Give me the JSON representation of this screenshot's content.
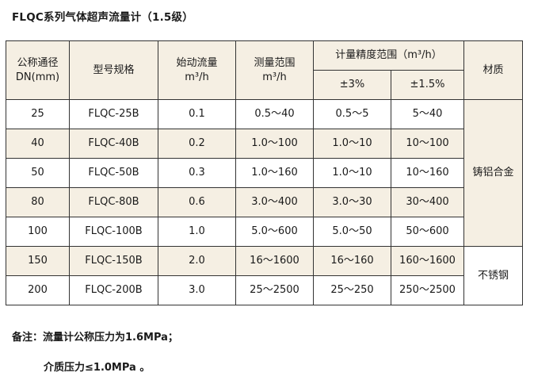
{
  "title": "FLQC系列气体超声流量计（1.5级）",
  "table": {
    "headers": {
      "dn_line1": "公称通径",
      "dn_line2": "DN(mm)",
      "model": "型号规格",
      "start_flow_line1": "始动流量",
      "start_flow_line2": "m³/h",
      "range_line1": "测量范围",
      "range_line2": "m³/h",
      "accuracy_group": "计量精度范围（m³/h）",
      "acc_3": "±3%",
      "acc_1_5": "±1.5%",
      "material": "材质"
    },
    "rows": [
      {
        "dn": "25",
        "model": "FLQC-25B",
        "start": "0.1",
        "range": "0.5～40",
        "acc3": "0.5～5",
        "acc15": "5～40"
      },
      {
        "dn": "40",
        "model": "FLQC-40B",
        "start": "0.2",
        "range": "1.0～100",
        "acc3": "1.0～10",
        "acc15": "10～100"
      },
      {
        "dn": "50",
        "model": "FLQC-50B",
        "start": "0.3",
        "range": "1.0～160",
        "acc3": "1.0～10",
        "acc15": "10～160"
      },
      {
        "dn": "80",
        "model": "FLQC-80B",
        "start": "0.6",
        "range": "3.0～400",
        "acc3": "3.0～30",
        "acc15": "30～400"
      },
      {
        "dn": "100",
        "model": "FLQC-100B",
        "start": "1.0",
        "range": "5.0～600",
        "acc3": "5.0～50",
        "acc15": "50～600"
      },
      {
        "dn": "150",
        "model": "FLQC-150B",
        "start": "2.0",
        "range": "16～1600",
        "acc3": "16～160",
        "acc15": "160～1600"
      },
      {
        "dn": "200",
        "model": "FLQC-200B",
        "start": "3.0",
        "range": "25～2500",
        "acc3": "25～250",
        "acc15": "250～2500"
      }
    ],
    "materials": {
      "cast_aluminum": "铸铝合金",
      "stainless": "不锈钢"
    },
    "shade_color": "#f5efe3"
  },
  "notes": {
    "line1": "备注：流量计公称压力为1.6MPa；",
    "line2": "介质压力≤1.0MPa 。"
  }
}
